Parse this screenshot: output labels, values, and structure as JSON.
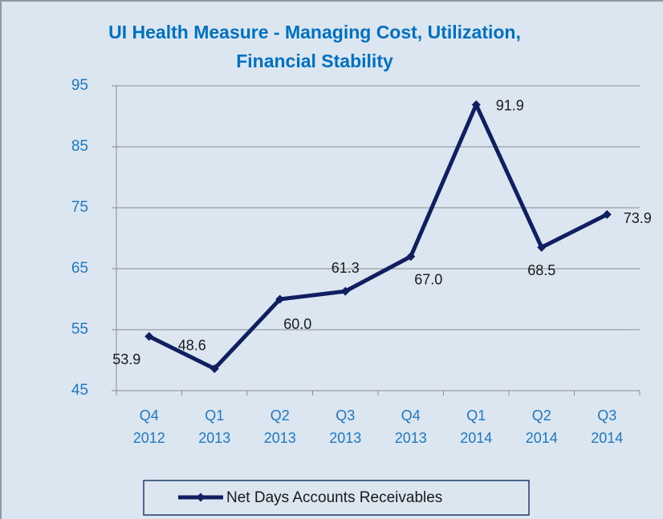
{
  "chart_data": {
    "type": "line",
    "title": "UI Health Measure - Managing Cost, Utilization, Financial Stability",
    "categories": [
      [
        "Q4",
        "2012"
      ],
      [
        "Q1",
        "2013"
      ],
      [
        "Q2",
        "2013"
      ],
      [
        "Q3",
        "2013"
      ],
      [
        "Q4",
        "2013"
      ],
      [
        "Q1",
        "2014"
      ],
      [
        "Q2",
        "2014"
      ],
      [
        "Q3",
        "2014"
      ]
    ],
    "series": [
      {
        "name": "Net Days Accounts Receivables",
        "color": "#0f1f5f",
        "values": [
          53.9,
          48.6,
          60.0,
          61.3,
          67.0,
          91.9,
          68.5,
          73.9
        ],
        "value_labels": [
          "53.9",
          "48.6",
          "60.0",
          "61.3",
          "67.0",
          "91.9",
          "68.5",
          "73.9"
        ]
      }
    ],
    "ylim": [
      45,
      95
    ],
    "yticks": [
      45,
      55,
      65,
      75,
      85,
      95
    ],
    "grid": true,
    "legend": "bottom"
  }
}
